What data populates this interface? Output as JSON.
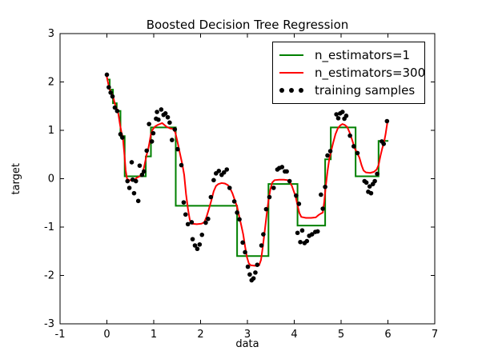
{
  "figure_title": "Boosted Decision Tree Regression",
  "chart_data": {
    "type": "line",
    "title": "Boosted Decision Tree Regression",
    "xlabel": "data",
    "ylabel": "target",
    "xlim": [
      -1,
      7
    ],
    "ylim": [
      -3,
      3
    ],
    "grid": false,
    "background_color": "#ffffff",
    "axis_color": "#000000",
    "x_ticks": {
      "values": [
        -1,
        0,
        1,
        2,
        3,
        4,
        5,
        6,
        7
      ],
      "labels": [
        "-1",
        "0",
        "1",
        "2",
        "3",
        "4",
        "5",
        "6",
        "7"
      ]
    },
    "y_ticks": {
      "values": [
        -3,
        -2,
        -1,
        0,
        1,
        2,
        3
      ],
      "labels": [
        "-3",
        "-2",
        "-1",
        "0",
        "1",
        "2",
        "3"
      ]
    },
    "legend": {
      "position": "upper right",
      "entries": [
        "n_estimators=1",
        "n_estimators=300",
        "training samples"
      ]
    },
    "series": [
      {
        "name": "n_estimators=1",
        "type": "step",
        "color": "#008000",
        "steps": [
          [
            0.0,
            0.06,
            2.05
          ],
          [
            0.06,
            0.13,
            1.84
          ],
          [
            0.13,
            0.21,
            1.56
          ],
          [
            0.21,
            0.29,
            1.4
          ],
          [
            0.29,
            0.38,
            0.88
          ],
          [
            0.38,
            0.83,
            0.05
          ],
          [
            0.83,
            0.94,
            0.46
          ],
          [
            0.94,
            1.47,
            1.06
          ],
          [
            1.47,
            2.78,
            -0.56
          ],
          [
            2.78,
            3.45,
            -1.6
          ],
          [
            3.45,
            4.07,
            -0.11
          ],
          [
            4.07,
            4.66,
            -0.97
          ],
          [
            4.66,
            4.78,
            0.4
          ],
          [
            4.78,
            5.31,
            1.06
          ],
          [
            5.31,
            5.8,
            0.05
          ],
          [
            5.8,
            6.01,
            0.78
          ]
        ]
      },
      {
        "name": "n_estimators=300",
        "type": "line",
        "color": "#ff0000",
        "points": [
          [
            0.0,
            2.1
          ],
          [
            0.03,
            1.96
          ],
          [
            0.06,
            1.85
          ],
          [
            0.1,
            1.77
          ],
          [
            0.13,
            1.7
          ],
          [
            0.17,
            1.55
          ],
          [
            0.21,
            1.44
          ],
          [
            0.24,
            1.37
          ],
          [
            0.28,
            1.12
          ],
          [
            0.31,
            0.96
          ],
          [
            0.34,
            0.86
          ],
          [
            0.37,
            0.55
          ],
          [
            0.4,
            0.18
          ],
          [
            0.43,
            0.0
          ],
          [
            0.47,
            -0.03
          ],
          [
            0.58,
            -0.03
          ],
          [
            0.64,
            0.02
          ],
          [
            0.7,
            0.05
          ],
          [
            0.75,
            0.1
          ],
          [
            0.79,
            0.22
          ],
          [
            0.82,
            0.36
          ],
          [
            0.85,
            0.5
          ],
          [
            0.88,
            0.6
          ],
          [
            0.91,
            0.75
          ],
          [
            0.94,
            0.92
          ],
          [
            0.98,
            1.02
          ],
          [
            1.03,
            1.08
          ],
          [
            1.08,
            1.11
          ],
          [
            1.13,
            1.13
          ],
          [
            1.18,
            1.15
          ],
          [
            1.23,
            1.11
          ],
          [
            1.28,
            1.07
          ],
          [
            1.35,
            1.04
          ],
          [
            1.41,
            1.03
          ],
          [
            1.46,
            0.96
          ],
          [
            1.51,
            0.75
          ],
          [
            1.56,
            0.52
          ],
          [
            1.61,
            0.3
          ],
          [
            1.65,
            0.08
          ],
          [
            1.69,
            -0.32
          ],
          [
            1.73,
            -0.62
          ],
          [
            1.77,
            -0.85
          ],
          [
            1.81,
            -0.93
          ],
          [
            1.92,
            -0.94
          ],
          [
            2.02,
            -0.93
          ],
          [
            2.08,
            -0.9
          ],
          [
            2.13,
            -0.78
          ],
          [
            2.18,
            -0.62
          ],
          [
            2.23,
            -0.45
          ],
          [
            2.28,
            -0.26
          ],
          [
            2.33,
            -0.15
          ],
          [
            2.38,
            -0.11
          ],
          [
            2.45,
            -0.09
          ],
          [
            2.52,
            -0.1
          ],
          [
            2.58,
            -0.13
          ],
          [
            2.63,
            -0.2
          ],
          [
            2.68,
            -0.3
          ],
          [
            2.73,
            -0.44
          ],
          [
            2.78,
            -0.58
          ],
          [
            2.83,
            -0.8
          ],
          [
            2.87,
            -0.97
          ],
          [
            2.91,
            -1.15
          ],
          [
            2.95,
            -1.4
          ],
          [
            2.99,
            -1.62
          ],
          [
            3.03,
            -1.75
          ],
          [
            3.07,
            -1.79
          ],
          [
            3.16,
            -1.8
          ],
          [
            3.25,
            -1.79
          ],
          [
            3.29,
            -1.68
          ],
          [
            3.33,
            -1.4
          ],
          [
            3.37,
            -1.08
          ],
          [
            3.41,
            -0.75
          ],
          [
            3.45,
            -0.45
          ],
          [
            3.49,
            -0.22
          ],
          [
            3.53,
            -0.08
          ],
          [
            3.58,
            -0.03
          ],
          [
            3.68,
            -0.02
          ],
          [
            3.78,
            -0.02
          ],
          [
            3.86,
            -0.03
          ],
          [
            3.91,
            -0.08
          ],
          [
            3.95,
            -0.15
          ],
          [
            3.99,
            -0.26
          ],
          [
            4.03,
            -0.37
          ],
          [
            4.07,
            -0.55
          ],
          [
            4.11,
            -0.71
          ],
          [
            4.15,
            -0.79
          ],
          [
            4.25,
            -0.81
          ],
          [
            4.36,
            -0.81
          ],
          [
            4.46,
            -0.8
          ],
          [
            4.52,
            -0.75
          ],
          [
            4.57,
            -0.72
          ],
          [
            4.61,
            -0.7
          ],
          [
            4.64,
            -0.48
          ],
          [
            4.67,
            -0.18
          ],
          [
            4.71,
            0.15
          ],
          [
            4.75,
            0.42
          ],
          [
            4.79,
            0.58
          ],
          [
            4.83,
            0.74
          ],
          [
            4.88,
            0.92
          ],
          [
            4.93,
            1.04
          ],
          [
            4.98,
            1.1
          ],
          [
            5.03,
            1.13
          ],
          [
            5.08,
            1.11
          ],
          [
            5.13,
            1.07
          ],
          [
            5.18,
            0.96
          ],
          [
            5.23,
            0.82
          ],
          [
            5.29,
            0.63
          ],
          [
            5.34,
            0.54
          ],
          [
            5.39,
            0.44
          ],
          [
            5.44,
            0.27
          ],
          [
            5.48,
            0.17
          ],
          [
            5.53,
            0.13
          ],
          [
            5.62,
            0.12
          ],
          [
            5.7,
            0.14
          ],
          [
            5.76,
            0.19
          ],
          [
            5.8,
            0.28
          ],
          [
            5.84,
            0.47
          ],
          [
            5.88,
            0.63
          ],
          [
            5.92,
            0.77
          ],
          [
            5.95,
            0.92
          ],
          [
            5.97,
            1.05
          ],
          [
            5.99,
            1.17
          ]
        ]
      },
      {
        "name": "training samples",
        "type": "scatter",
        "color": "#000000",
        "points": [
          [
            0.0,
            2.15
          ],
          [
            0.04,
            1.89
          ],
          [
            0.08,
            1.78
          ],
          [
            0.12,
            1.7
          ],
          [
            0.17,
            1.47
          ],
          [
            0.22,
            1.4
          ],
          [
            0.29,
            0.92
          ],
          [
            0.33,
            0.85
          ],
          [
            0.44,
            -0.05
          ],
          [
            0.48,
            -0.19
          ],
          [
            0.53,
            0.34
          ],
          [
            0.55,
            -0.02
          ],
          [
            0.58,
            -0.3
          ],
          [
            0.62,
            -0.05
          ],
          [
            0.67,
            -0.46
          ],
          [
            0.7,
            0.27
          ],
          [
            0.75,
            0.08
          ],
          [
            0.79,
            0.15
          ],
          [
            0.85,
            0.58
          ],
          [
            0.9,
            1.13
          ],
          [
            0.96,
            0.77
          ],
          [
            0.99,
            0.94
          ],
          [
            1.05,
            1.24
          ],
          [
            1.07,
            1.38
          ],
          [
            1.1,
            1.22
          ],
          [
            1.16,
            1.43
          ],
          [
            1.21,
            1.32
          ],
          [
            1.25,
            1.35
          ],
          [
            1.3,
            1.27
          ],
          [
            1.34,
            1.16
          ],
          [
            1.39,
            0.8
          ],
          [
            1.45,
            1.02
          ],
          [
            1.51,
            0.61
          ],
          [
            1.59,
            0.28
          ],
          [
            1.64,
            -0.49
          ],
          [
            1.68,
            -0.74
          ],
          [
            1.73,
            -0.94
          ],
          [
            1.81,
            -0.9
          ],
          [
            1.83,
            -1.25
          ],
          [
            1.88,
            -1.38
          ],
          [
            1.93,
            -1.45
          ],
          [
            1.98,
            -1.36
          ],
          [
            2.03,
            -1.16
          ],
          [
            2.11,
            -0.91
          ],
          [
            2.16,
            -0.83
          ],
          [
            2.22,
            -0.38
          ],
          [
            2.28,
            -0.03
          ],
          [
            2.33,
            0.11
          ],
          [
            2.39,
            0.16
          ],
          [
            2.45,
            0.08
          ],
          [
            2.5,
            0.13
          ],
          [
            2.56,
            0.19
          ],
          [
            2.62,
            -0.19
          ],
          [
            2.72,
            -0.47
          ],
          [
            2.78,
            -0.7
          ],
          [
            2.83,
            -0.84
          ],
          [
            2.9,
            -1.32
          ],
          [
            2.95,
            -1.52
          ],
          [
            3.01,
            -1.82
          ],
          [
            3.05,
            -1.98
          ],
          [
            3.09,
            -2.1
          ],
          [
            3.13,
            -2.06
          ],
          [
            3.17,
            -1.94
          ],
          [
            3.21,
            -1.78
          ],
          [
            3.3,
            -1.38
          ],
          [
            3.34,
            -1.15
          ],
          [
            3.4,
            -0.63
          ],
          [
            3.47,
            -0.38
          ],
          [
            3.56,
            -0.19
          ],
          [
            3.64,
            0.19
          ],
          [
            3.68,
            0.22
          ],
          [
            3.74,
            0.24
          ],
          [
            3.8,
            0.15
          ],
          [
            3.84,
            0.15
          ],
          [
            3.9,
            -0.05
          ],
          [
            4.04,
            -0.35
          ],
          [
            4.07,
            -1.12
          ],
          [
            4.1,
            -0.52
          ],
          [
            4.13,
            -1.31
          ],
          [
            4.17,
            -1.07
          ],
          [
            4.22,
            -1.33
          ],
          [
            4.27,
            -1.29
          ],
          [
            4.32,
            -1.18
          ],
          [
            4.38,
            -1.15
          ],
          [
            4.45,
            -1.1
          ],
          [
            4.5,
            -1.09
          ],
          [
            4.57,
            -0.33
          ],
          [
            4.61,
            -0.62
          ],
          [
            4.66,
            -0.17
          ],
          [
            4.71,
            0.48
          ],
          [
            4.77,
            0.57
          ],
          [
            4.9,
            1.33
          ],
          [
            4.94,
            1.25
          ],
          [
            4.98,
            1.35
          ],
          [
            5.03,
            1.38
          ],
          [
            5.07,
            1.24
          ],
          [
            5.11,
            1.3
          ],
          [
            5.19,
            0.89
          ],
          [
            5.27,
            0.67
          ],
          [
            5.35,
            0.53
          ],
          [
            5.5,
            -0.05
          ],
          [
            5.54,
            -0.08
          ],
          [
            5.58,
            -0.27
          ],
          [
            5.61,
            -0.16
          ],
          [
            5.64,
            -0.3
          ],
          [
            5.68,
            -0.11
          ],
          [
            5.72,
            -0.05
          ],
          [
            5.77,
            0.1
          ],
          [
            5.87,
            0.77
          ],
          [
            5.91,
            0.72
          ],
          [
            5.98,
            1.19
          ]
        ]
      }
    ]
  }
}
